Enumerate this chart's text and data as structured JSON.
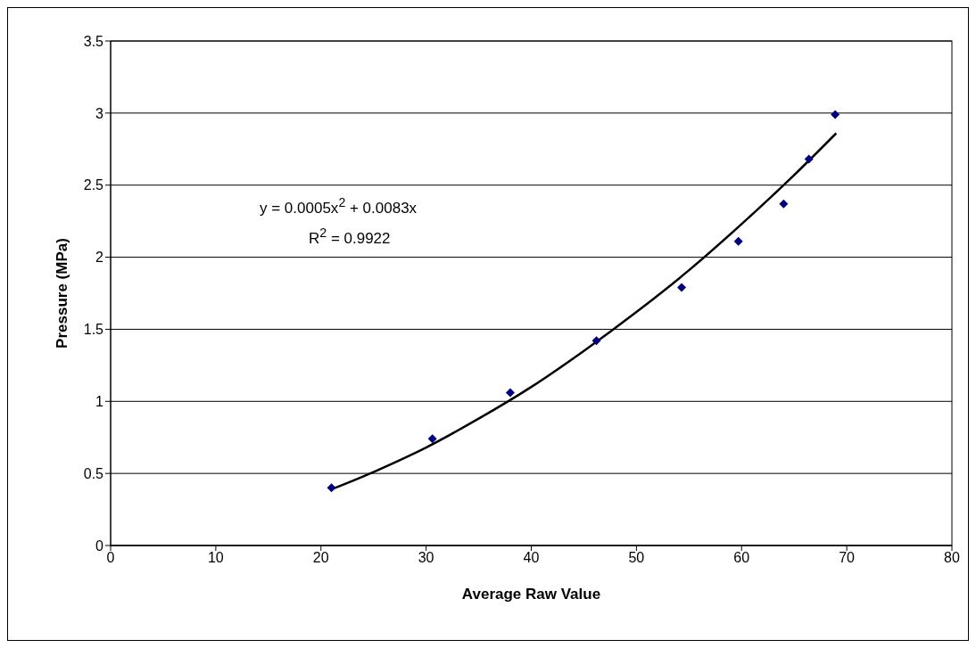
{
  "chart_data": {
    "type": "scatter",
    "xlabel": "Average Raw Value",
    "ylabel": "Pressure (MPa)",
    "xlim": [
      0,
      80
    ],
    "xticks": [
      0,
      10,
      20,
      30,
      40,
      50,
      60,
      70,
      80
    ],
    "ylim": [
      0,
      3.5
    ],
    "yticks": [
      0,
      0.5,
      1,
      1.5,
      2,
      2.5,
      3,
      3.5
    ],
    "grid": "y",
    "marker": "diamond",
    "series": [
      {
        "type": "scatter",
        "color": "#000080",
        "x": [
          21,
          30.6,
          38,
          46.2,
          54.3,
          59.7,
          64,
          66.4,
          68.9
        ],
        "values": [
          0.4,
          0.74,
          1.06,
          1.42,
          1.79,
          2.11,
          2.37,
          2.68,
          2.99
        ]
      },
      {
        "type": "line",
        "color": "#000000",
        "marker": "none",
        "x": [
          21,
          25,
          30,
          35,
          40,
          45,
          50,
          55,
          60,
          65,
          69
        ],
        "values": [
          0.39,
          0.51,
          0.68,
          0.88,
          1.1,
          1.35,
          1.62,
          1.91,
          2.23,
          2.57,
          2.86
        ]
      }
    ],
    "annotations": [
      "y = 0.0005x$^{2}$ + 0.0083x",
      "R$^{2}$ = 0.9922"
    ]
  }
}
